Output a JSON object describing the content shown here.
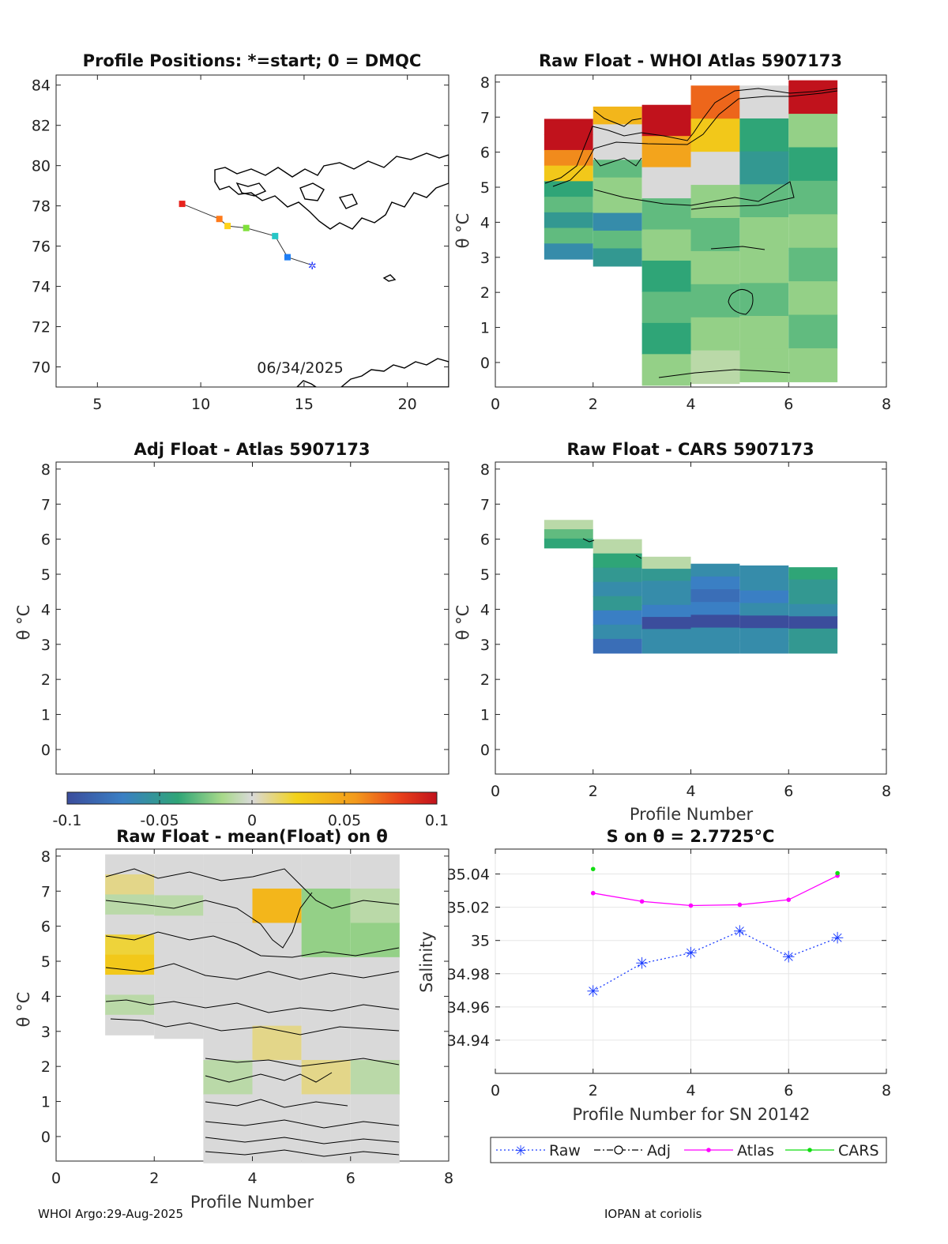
{
  "footer": {
    "left": "WHOI Argo:29-Aug-2025",
    "right": "IOPAN at coriolis"
  },
  "colors": {
    "grid": "#e6e6e6",
    "axis": "#222222",
    "raw": "#1a3cff",
    "atlas": "#ff00ff",
    "cars": "#11dd11",
    "coast": "#000000"
  },
  "colorbar": {
    "min": -0.1,
    "max": 0.1,
    "ticks": [
      "-0.1",
      "-0.05",
      "0",
      "0.05",
      "0.1"
    ]
  },
  "chart_data": [
    {
      "id": "positions",
      "type": "scatter",
      "title": "Profile Positions: *=start; 0 = DMQC",
      "xlim": [
        3,
        22
      ],
      "ylim": [
        69,
        84.5
      ],
      "xticks": [
        "5",
        "10",
        "15",
        "20"
      ],
      "yticks": [
        "70",
        "72",
        "74",
        "76",
        "78",
        "80",
        "82",
        "84"
      ],
      "date_label": "06/34/2025",
      "points": [
        {
          "lon": 9.1,
          "lat": 78.1,
          "color": "#e8231d"
        },
        {
          "lon": 10.9,
          "lat": 77.35,
          "color": "#ff7a1a"
        },
        {
          "lon": 11.3,
          "lat": 77.0,
          "color": "#ffd21a"
        },
        {
          "lon": 12.2,
          "lat": 76.9,
          "color": "#7fe03a"
        },
        {
          "lon": 13.6,
          "lat": 76.5,
          "color": "#26c6c6"
        },
        {
          "lon": 14.2,
          "lat": 75.45,
          "color": "#1e7ef5"
        },
        {
          "lon": 15.4,
          "lat": 75.05,
          "color": "#2a3cff"
        }
      ]
    },
    {
      "id": "raw_whoi",
      "type": "heatmap",
      "title": "Raw Float - WHOI Atlas  5907173",
      "ylabel": "θ °C",
      "xlim": [
        0,
        8
      ],
      "ylim": [
        -0.7,
        8.2
      ],
      "xticks": [
        "0",
        "2",
        "4",
        "6",
        "8"
      ],
      "yticks": [
        "0",
        "1",
        "2",
        "3",
        "4",
        "5",
        "6",
        "7",
        "8"
      ],
      "columns": [
        {
          "x0": 1,
          "x1": 2,
          "ymin": 2.95,
          "ymax": 6.95,
          "anom": [
            0.1,
            0.1,
            0.06,
            0.03,
            -0.04,
            -0.03,
            -0.05,
            -0.03,
            -0.06
          ]
        },
        {
          "x0": 2,
          "x1": 3,
          "ymin": 2.75,
          "ymax": 7.3,
          "anom": [
            0.04,
            0.0,
            0.0,
            -0.03,
            -0.02,
            -0.02,
            -0.06,
            -0.03,
            -0.05
          ]
        },
        {
          "x0": 3,
          "x1": 4,
          "ymin": -0.65,
          "ymax": 7.35,
          "anom": [
            0.1,
            0.05,
            0.0,
            -0.03,
            -0.02,
            -0.04,
            -0.03,
            -0.04,
            -0.02
          ]
        },
        {
          "x0": 4,
          "x1": 5,
          "ymin": -0.6,
          "ymax": 7.9,
          "anom": [
            0.07,
            0.03,
            0.0,
            -0.02,
            -0.03,
            -0.02,
            -0.03,
            -0.02,
            -0.01
          ]
        },
        {
          "x0": 5,
          "x1": 6,
          "ymin": -0.55,
          "ymax": 7.9,
          "anom": [
            0.0,
            -0.04,
            -0.05,
            -0.03,
            -0.02,
            -0.02,
            -0.03,
            -0.02,
            -0.02
          ]
        },
        {
          "x0": 6,
          "x1": 7,
          "ymin": -0.55,
          "ymax": 8.05,
          "anom": [
            0.1,
            -0.02,
            -0.04,
            -0.03,
            -0.02,
            -0.03,
            -0.02,
            -0.03,
            -0.02
          ]
        }
      ]
    },
    {
      "id": "adj_atlas",
      "type": "heatmap",
      "title": "Adj Float - Atlas  5907173",
      "ylabel": "θ °C",
      "xlim": [
        0,
        8
      ],
      "ylim": [
        -0.7,
        8.2
      ],
      "yticks": [
        "0",
        "1",
        "2",
        "3",
        "4",
        "5",
        "6",
        "7",
        "8"
      ],
      "columns": []
    },
    {
      "id": "raw_cars",
      "type": "heatmap",
      "title": "Raw Float - CARS  5907173",
      "ylabel": "θ °C",
      "xlabel": "Profile Number",
      "xlim": [
        0,
        8
      ],
      "ylim": [
        -0.7,
        8.2
      ],
      "xticks": [
        "0",
        "2",
        "4",
        "6",
        "8"
      ],
      "yticks": [
        "0",
        "1",
        "2",
        "3",
        "4",
        "5",
        "6",
        "7",
        "8"
      ],
      "columns": [
        {
          "x0": 1,
          "x1": 2,
          "ymin": 5.75,
          "ymax": 6.55,
          "anom": [
            -0.01,
            -0.03,
            -0.04
          ]
        },
        {
          "x0": 2,
          "x1": 3,
          "ymin": 2.75,
          "ymax": 6.0,
          "anom": [
            -0.01,
            -0.04,
            -0.05,
            -0.06,
            -0.05,
            -0.07,
            -0.06,
            -0.08
          ]
        },
        {
          "x0": 3,
          "x1": 4,
          "ymin": 2.75,
          "ymax": 5.5,
          "anom": [
            -0.01,
            -0.05,
            -0.06,
            -0.06,
            -0.07,
            -0.1,
            -0.06,
            -0.06
          ]
        },
        {
          "x0": 4,
          "x1": 5,
          "ymin": 2.75,
          "ymax": 5.3,
          "anom": [
            -0.06,
            -0.07,
            -0.08,
            -0.07,
            -0.1,
            -0.06,
            -0.06
          ]
        },
        {
          "x0": 5,
          "x1": 6,
          "ymin": 2.75,
          "ymax": 5.25,
          "anom": [
            -0.06,
            -0.06,
            -0.07,
            -0.06,
            -0.1,
            -0.06,
            -0.06
          ]
        },
        {
          "x0": 6,
          "x1": 7,
          "ymin": 2.75,
          "ymax": 5.2,
          "anom": [
            -0.04,
            -0.05,
            -0.05,
            -0.06,
            -0.1,
            -0.05,
            -0.05
          ]
        }
      ]
    },
    {
      "id": "raw_minus_mean",
      "type": "heatmap",
      "title": "Raw Float - mean(Float) on θ",
      "ylabel": "θ °C",
      "xlabel": "Profile Number",
      "xlim": [
        0,
        8
      ],
      "ylim": [
        -0.7,
        8.2
      ],
      "xticks": [
        "0",
        "2",
        "4",
        "6",
        "8"
      ],
      "yticks": [
        "0",
        "1",
        "2",
        "3",
        "4",
        "5",
        "6",
        "7",
        "8"
      ],
      "columns": [
        {
          "x0": 1,
          "x1": 2,
          "ymin": 2.9,
          "ymax": 8.05,
          "anom": [
            0.0,
            0.01,
            -0.01,
            0.0,
            0.02,
            0.03,
            0.0,
            -0.01,
            0.0
          ]
        },
        {
          "x0": 2,
          "x1": 3,
          "ymin": 2.8,
          "ymax": 8.05,
          "anom": [
            0.0,
            0.0,
            -0.01,
            0.0,
            0.0,
            0.0,
            0.0,
            0.0,
            0.0
          ]
        },
        {
          "x0": 3,
          "x1": 4,
          "ymin": -0.75,
          "ymax": 8.05,
          "anom": [
            0.0,
            0.0,
            0.0,
            0.0,
            0.0,
            0.0,
            -0.01,
            0.0,
            0.0
          ]
        },
        {
          "x0": 4,
          "x1": 5,
          "ymin": -0.75,
          "ymax": 8.05,
          "anom": [
            0.0,
            0.04,
            0.0,
            0.0,
            0.0,
            0.01,
            0.0,
            0.0,
            0.0
          ]
        },
        {
          "x0": 5,
          "x1": 6,
          "ymin": -0.75,
          "ymax": 8.05,
          "anom": [
            0.0,
            -0.02,
            -0.02,
            0.0,
            0.0,
            0.0,
            0.01,
            0.0,
            0.0
          ]
        },
        {
          "x0": 6,
          "x1": 7,
          "ymin": -0.75,
          "ymax": 8.05,
          "anom": [
            0.0,
            -0.01,
            -0.02,
            0.0,
            0.0,
            0.0,
            -0.01,
            0.0,
            0.0
          ]
        }
      ]
    },
    {
      "id": "salinity",
      "type": "line",
      "title": "S on θ = 2.7725°C",
      "xlabel": "Profile Number for SN 20142",
      "ylabel": "Salinity",
      "xlim": [
        0,
        8
      ],
      "ylim": [
        34.92,
        35.055
      ],
      "xticks": [
        "0",
        "2",
        "4",
        "6",
        "8"
      ],
      "yticks": [
        "34.94",
        "34.96",
        "34.98",
        "35",
        "35.02",
        "35.04"
      ],
      "series": [
        {
          "name": "Raw",
          "x": [
            2,
            3,
            4,
            5,
            6,
            7
          ],
          "values": [
            34.9695,
            34.9862,
            34.9925,
            35.0055,
            34.9902,
            35.0015
          ],
          "color": "#1a3cff",
          "dash": "2,3",
          "marker": "asterisk"
        },
        {
          "name": "Adj",
          "x": [],
          "values": [],
          "color": "#000000",
          "dash": "8,3,2,3",
          "marker": "circle"
        },
        {
          "name": "Atlas",
          "x": [
            2,
            3,
            4,
            5,
            6,
            7
          ],
          "values": [
            35.0285,
            35.0235,
            35.021,
            35.0215,
            35.0245,
            35.039
          ],
          "color": "#ff00ff",
          "dash": "",
          "marker": "dot"
        },
        {
          "name": "CARS",
          "x": [
            2,
            7
          ],
          "values": [
            35.043,
            35.0405
          ],
          "color": "#11dd11",
          "dash": "",
          "marker": "dot"
        }
      ]
    }
  ]
}
